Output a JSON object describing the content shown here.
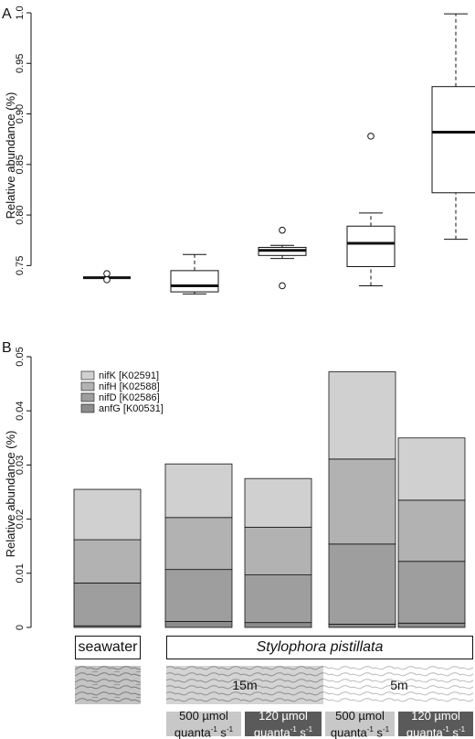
{
  "chart_data": [
    {
      "panel": "A",
      "type": "box",
      "ylabel": "Relative abundance (%)",
      "ylim": [
        0.725,
        1.0
      ],
      "yticks": [
        "0.75",
        "0.80",
        "0.85",
        "0.90",
        "0.95",
        "1.0"
      ],
      "boxes": [
        {
          "min": 0.738,
          "q1": 0.738,
          "median": 0.738,
          "q3": 0.738,
          "max": 0.738,
          "outliers": [
            0.742,
            0.736
          ]
        },
        {
          "min": 0.722,
          "q1": 0.724,
          "median": 0.73,
          "q3": 0.745,
          "max": 0.761,
          "outliers": []
        },
        {
          "min": 0.757,
          "q1": 0.76,
          "median": 0.765,
          "q3": 0.768,
          "max": 0.77,
          "outliers": [
            0.785,
            0.73
          ]
        },
        {
          "min": 0.73,
          "q1": 0.749,
          "median": 0.772,
          "q3": 0.789,
          "max": 0.802,
          "outliers": [
            0.878
          ]
        },
        {
          "min": 0.776,
          "q1": 0.822,
          "median": 0.882,
          "q3": 0.927,
          "max": 0.999,
          "outliers": []
        }
      ]
    },
    {
      "panel": "B",
      "type": "bar",
      "stacked": true,
      "ylabel": "Relative abundance (%)",
      "ylim": [
        0,
        0.05
      ],
      "yticks": [
        "0",
        "0.01",
        "0.02",
        "0.03",
        "0.04",
        "0.05"
      ],
      "categories": [
        "seawater",
        "15m 500",
        "15m 120",
        "5m 500",
        "5m 120"
      ],
      "series": [
        {
          "name": "anfG [K00531]",
          "color": "#8c8c8c",
          "values": [
            0.0003,
            0.0011,
            0.0009,
            0.0006,
            0.0008
          ]
        },
        {
          "name": "nifD [K02586]",
          "color": "#9e9e9e",
          "values": [
            0.0079,
            0.0096,
            0.0088,
            0.0148,
            0.0114
          ]
        },
        {
          "name": "nifH [K02588]",
          "color": "#b2b2b2",
          "values": [
            0.008,
            0.0096,
            0.0088,
            0.0157,
            0.0113
          ]
        },
        {
          "name": "nifK [K02591]",
          "color": "#d0d0d0",
          "values": [
            0.0093,
            0.0099,
            0.009,
            0.0161,
            0.0115
          ]
        }
      ]
    }
  ],
  "panels": {
    "a": "A",
    "b": "B"
  },
  "labels": {
    "seawater": "seawater",
    "species": "Stylophora pistillata",
    "depth_15": "15m",
    "depth_5": "5m",
    "light_500_line1": "500 µmol",
    "light_120_line1": "120 µmol",
    "quanta": "quanta",
    "exp_m1": "-1",
    "s": " s",
    "exp_m1_b": "-1"
  }
}
